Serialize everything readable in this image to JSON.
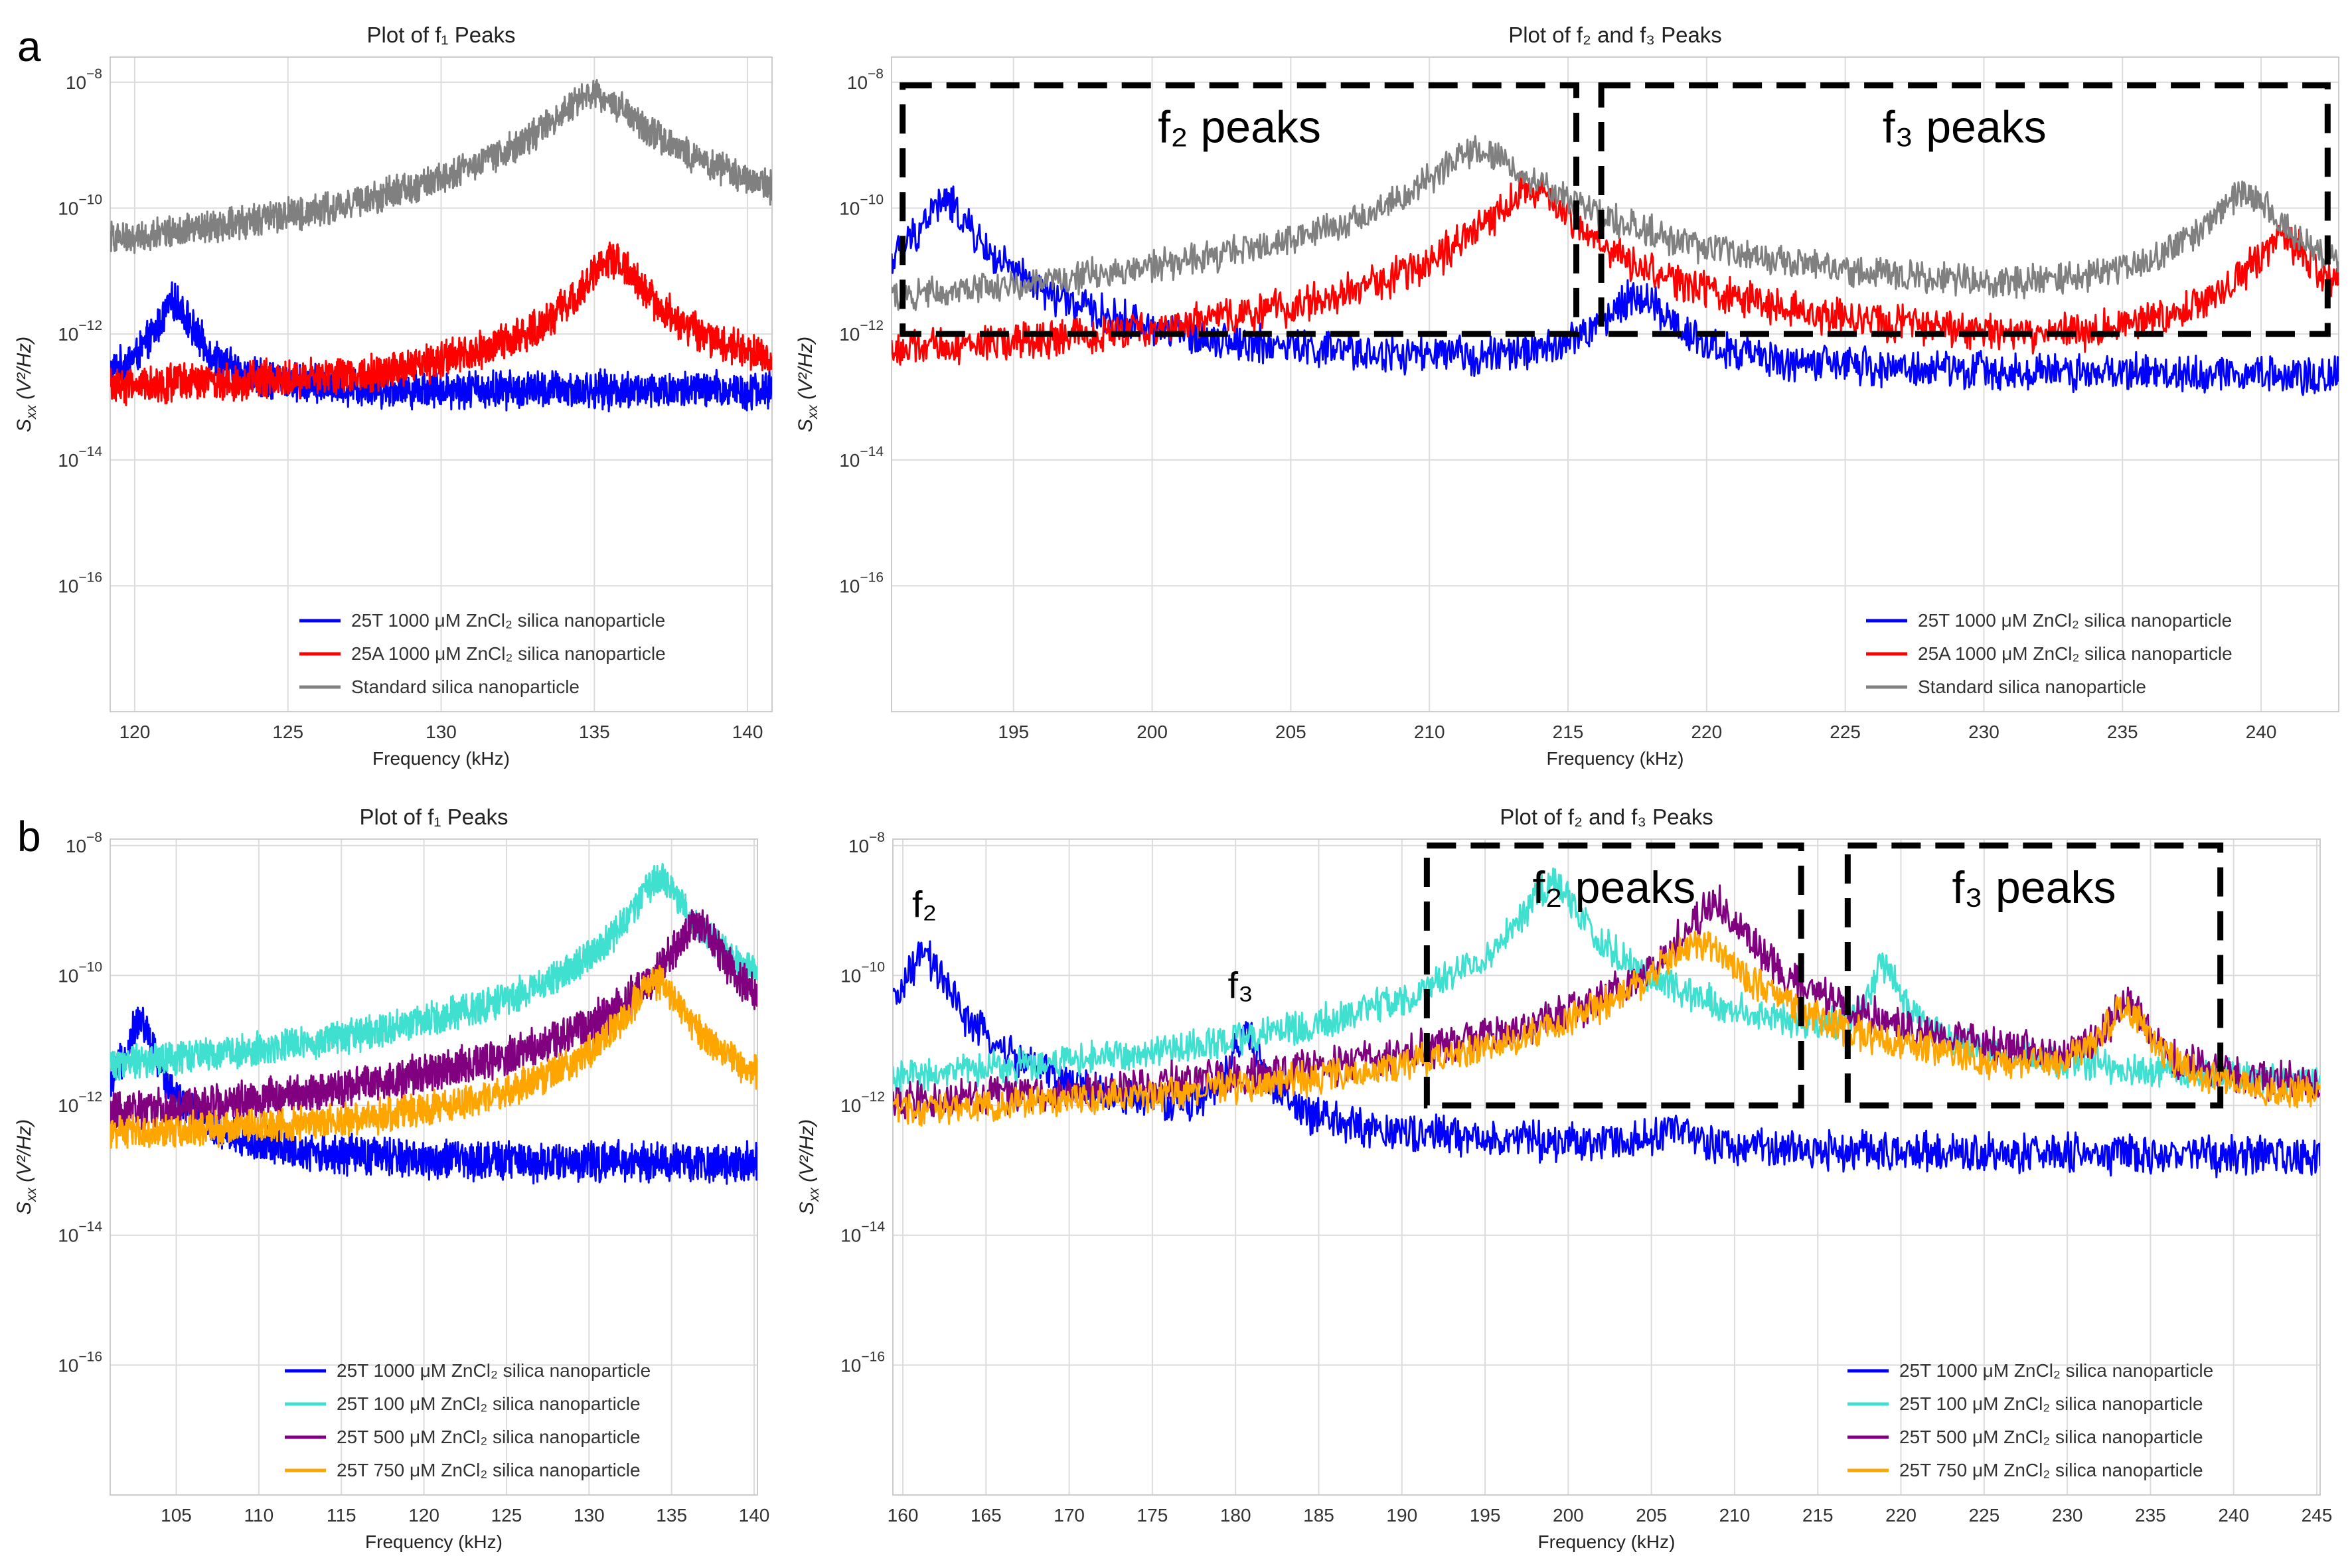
{
  "panels": [
    {
      "letter": "a"
    },
    {
      "letter": "b"
    }
  ],
  "chart_data": [
    {
      "id": "a-left",
      "panel": "a",
      "type": "line",
      "title": "Plot of f₁ Peaks",
      "xlabel": "Frequency (kHz)",
      "ylabel": "Sxx (V²/Hz)",
      "xlim": [
        119.2,
        140.8
      ],
      "ylim_log10": [
        -18,
        -7.6
      ],
      "yscale": "log",
      "grid": true,
      "legend": "lower-right",
      "x_ticks": [
        120,
        125,
        130,
        135,
        140
      ],
      "x_tick_labels": [
        "120",
        "125",
        "130",
        "135",
        "140"
      ],
      "y_ticks": [
        -16,
        -14,
        -12,
        -10,
        -8
      ],
      "series": [
        {
          "name": "25T 1000 μM ZnCl₂ silica nanoparticle",
          "color": "#0000ff",
          "baseline_log10": -12.9,
          "noise": 0.35,
          "peaks": [
            {
              "center": 121.3,
              "height_log10": -11.5,
              "width": 0.45
            }
          ]
        },
        {
          "name": "25A 1000 μM ZnCl₂ silica nanoparticle",
          "color": "#ff0000",
          "baseline_log10": -12.9,
          "noise": 0.35,
          "peaks": [
            {
              "center": 135.6,
              "height_log10": -10.8,
              "width": 0.7
            }
          ]
        },
        {
          "name": "Standard silica nanoparticle",
          "color": "#808080",
          "baseline_log10": -11.8,
          "noise": 0.3,
          "peaks": [
            {
              "center": 135.0,
              "height_log10": -8.2,
              "width": 1.1
            }
          ]
        }
      ]
    },
    {
      "id": "a-right",
      "panel": "a",
      "type": "line",
      "title": "Plot of f₂ and f₃ Peaks",
      "xlabel": "Frequency (kHz)",
      "ylabel": "Sxx (V²/Hz)",
      "xlim": [
        190.6,
        242.8
      ],
      "ylim_log10": [
        -18,
        -7.6
      ],
      "yscale": "log",
      "grid": true,
      "legend": "lower-right",
      "x_ticks": [
        195,
        200,
        205,
        210,
        215,
        220,
        225,
        230,
        235,
        240
      ],
      "x_tick_labels": [
        "195",
        "200",
        "205",
        "210",
        "215",
        "220",
        "225",
        "230",
        "235",
        "240"
      ],
      "y_ticks": [
        -16,
        -14,
        -12,
        -10,
        -8
      ],
      "series": [
        {
          "name": "25T 1000 μM ZnCl₂ silica nanoparticle",
          "color": "#0000ff",
          "baseline_log10": -12.7,
          "noise": 0.35,
          "peaks": [
            {
              "center": 192.5,
              "height_log10": -9.9,
              "width": 0.7
            },
            {
              "center": 217.5,
              "height_log10": -11.4,
              "width": 0.9
            }
          ]
        },
        {
          "name": "25A 1000 μM ZnCl₂ silica nanoparticle",
          "color": "#ff0000",
          "baseline_log10": -12.8,
          "noise": 0.35,
          "peaks": [
            {
              "center": 213.6,
              "height_log10": -9.7,
              "width": 1.0
            },
            {
              "center": 240.8,
              "height_log10": -10.5,
              "width": 0.9
            }
          ]
        },
        {
          "name": "Standard silica nanoparticle",
          "color": "#808080",
          "baseline_log10": -12.2,
          "noise": 0.3,
          "peaks": [
            {
              "center": 211.9,
              "height_log10": -9.1,
              "width": 1.4
            },
            {
              "center": 239.4,
              "height_log10": -9.8,
              "width": 1.0
            }
          ]
        }
      ],
      "boxes": [
        {
          "label": "f₂ peaks",
          "x": [
            191.0,
            215.3
          ],
          "y_log10": [
            -12.0,
            -8.05
          ]
        },
        {
          "label": "f₃ peaks",
          "x": [
            216.2,
            242.4
          ],
          "y_log10": [
            -12.0,
            -8.05
          ]
        }
      ]
    },
    {
      "id": "b-left",
      "panel": "b",
      "type": "line",
      "title": "Plot of f₁ Peaks",
      "xlabel": "Frequency (kHz)",
      "ylabel": "Sxx (V²/Hz)",
      "xlim": [
        101.0,
        140.2
      ],
      "ylim_log10": [
        -18,
        -7.9
      ],
      "yscale": "log",
      "grid": true,
      "legend": "lower-right",
      "x_ticks": [
        105,
        110,
        115,
        120,
        125,
        130,
        135,
        140
      ],
      "x_tick_labels": [
        "105",
        "110",
        "115",
        "120",
        "125",
        "130",
        "135",
        "140"
      ],
      "y_ticks": [
        -16,
        -14,
        -12,
        -10,
        -8
      ],
      "series": [
        {
          "name": "25T 1000 μM ZnCl₂ silica nanoparticle",
          "color": "#0000ff",
          "baseline_log10": -12.9,
          "noise": 0.35,
          "peaks": [
            {
              "center": 102.8,
              "height_log10": -10.7,
              "width": 0.6
            }
          ]
        },
        {
          "name": "25T 100 μM ZnCl₂ silica nanoparticle",
          "color": "#40e0d0",
          "baseline_log10": -12.0,
          "noise": 0.3,
          "peaks": [
            {
              "center": 134.3,
              "height_log10": -8.5,
              "width": 1.1
            }
          ]
        },
        {
          "name": "25T 500 μM ZnCl₂ silica nanoparticle",
          "color": "#800080",
          "baseline_log10": -12.7,
          "noise": 0.35,
          "peaks": [
            {
              "center": 136.5,
              "height_log10": -9.2,
              "width": 1.1
            }
          ]
        },
        {
          "name": "25T 750 μM ZnCl₂ silica nanoparticle",
          "color": "#ffa500",
          "baseline_log10": -12.55,
          "noise": 0.3,
          "peaks": [
            {
              "center": 134.0,
              "height_log10": -10.1,
              "width": 1.2
            }
          ]
        }
      ]
    },
    {
      "id": "b-right",
      "panel": "b",
      "type": "line",
      "title": "Plot of f₂ and f₃ Peaks",
      "xlabel": "Frequency (kHz)",
      "ylabel": "Sxx (V²/Hz)",
      "xlim": [
        159.4,
        245.2
      ],
      "ylim_log10": [
        -18,
        -7.9
      ],
      "yscale": "log",
      "grid": true,
      "legend": "lower-right",
      "x_ticks": [
        160,
        165,
        170,
        175,
        180,
        185,
        190,
        195,
        200,
        205,
        210,
        215,
        220,
        225,
        230,
        235,
        240,
        245
      ],
      "x_tick_labels": [
        "160",
        "165",
        "170",
        "175",
        "180",
        "185",
        "190",
        "195",
        "200",
        "205",
        "210",
        "215",
        "220",
        "225",
        "230",
        "235",
        "240",
        "245"
      ],
      "y_ticks": [
        -16,
        -14,
        -12,
        -10,
        -8
      ],
      "series": [
        {
          "name": "25T 1000 μM ZnCl₂ silica nanoparticle",
          "color": "#0000ff",
          "baseline_log10": -12.85,
          "noise": 0.35,
          "peaks": [
            {
              "center": 161.3,
              "height_log10": -9.7,
              "width": 0.9
            },
            {
              "center": 180.6,
              "height_log10": -10.9,
              "width": 0.6
            },
            {
              "center": 206.0,
              "height_log10": -12.5,
              "width": 1.5
            }
          ]
        },
        {
          "name": "25T 100 μM ZnCl₂ silica nanoparticle",
          "color": "#40e0d0",
          "baseline_log10": -12.3,
          "noise": 0.3,
          "peaks": [
            {
              "center": 199.0,
              "height_log10": -8.6,
              "width": 1.2
            },
            {
              "center": 219.0,
              "height_log10": -9.9,
              "width": 0.7
            }
          ]
        },
        {
          "name": "25T 500 μM ZnCl₂ silica nanoparticle",
          "color": "#800080",
          "baseline_log10": -12.6,
          "noise": 0.35,
          "peaks": [
            {
              "center": 208.8,
              "height_log10": -8.9,
              "width": 1.3
            },
            {
              "center": 233.6,
              "height_log10": -10.4,
              "width": 0.8
            }
          ]
        },
        {
          "name": "25T 750 μM ZnCl₂ silica nanoparticle",
          "color": "#ffa500",
          "baseline_log10": -12.5,
          "noise": 0.3,
          "peaks": [
            {
              "center": 207.8,
              "height_log10": -9.5,
              "width": 2.0
            },
            {
              "center": 233.4,
              "height_log10": -10.5,
              "width": 1.0
            }
          ]
        }
      ],
      "boxes": [
        {
          "label": "f₂ peaks",
          "x": [
            191.5,
            214.0
          ],
          "y_log10": [
            -12.0,
            -8.0
          ]
        },
        {
          "label": "f₃ peaks",
          "x": [
            216.8,
            239.2
          ],
          "y_log10": [
            -12.0,
            -8.0
          ]
        }
      ],
      "annotations": [
        {
          "text": "f₂",
          "x": 161.3,
          "y_log10": -9.1
        },
        {
          "text": "f₃",
          "x": 180.3,
          "y_log10": -10.35
        }
      ]
    }
  ]
}
